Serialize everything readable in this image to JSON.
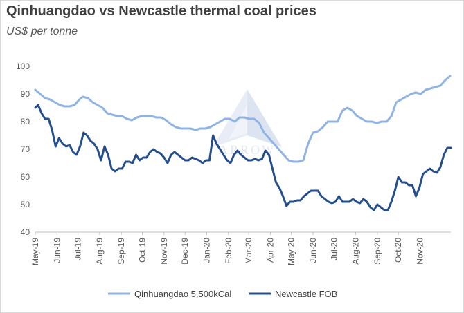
{
  "chart_data": {
    "type": "line",
    "title": "Qinhuangdao vs Newcastle thermal coal prices",
    "subtitle": "US$ per tonne",
    "ylim": [
      40,
      100
    ],
    "yticks": [
      "40",
      "50",
      "60",
      "70",
      "80",
      "90",
      "100"
    ],
    "xlim": [
      "2019-05-01",
      "2020-12-15"
    ],
    "categories": [
      "May-19",
      "Jun-19",
      "Jul-19",
      "Aug-19",
      "Sep-19",
      "Oct-19",
      "Nov-19",
      "Dec-19",
      "Jan-20",
      "Feb-20",
      "Mar-20",
      "Apr-20",
      "May-20",
      "Jun-20",
      "Jul-20",
      "Aug-20",
      "Sep-20",
      "Oct-20",
      "Nov-20"
    ],
    "legend_position": "bottom",
    "grid": false,
    "watermark": "ARROW",
    "series": [
      {
        "name": "Qinhuangdao 5,500kCal",
        "color": "#8fb4e3",
        "points": [
          [
            "2019-05-01",
            91.5
          ],
          [
            "2019-05-08",
            90
          ],
          [
            "2019-05-15",
            88.5
          ],
          [
            "2019-05-22",
            88
          ],
          [
            "2019-05-29",
            87
          ],
          [
            "2019-06-05",
            86
          ],
          [
            "2019-06-12",
            85.5
          ],
          [
            "2019-06-19",
            85.5
          ],
          [
            "2019-06-26",
            86
          ],
          [
            "2019-07-03",
            88
          ],
          [
            "2019-07-08",
            89
          ],
          [
            "2019-07-15",
            88.5
          ],
          [
            "2019-07-22",
            87
          ],
          [
            "2019-07-29",
            86
          ],
          [
            "2019-08-05",
            85
          ],
          [
            "2019-08-12",
            83
          ],
          [
            "2019-08-19",
            82.5
          ],
          [
            "2019-08-26",
            82
          ],
          [
            "2019-09-02",
            82
          ],
          [
            "2019-09-09",
            81
          ],
          [
            "2019-09-16",
            80.5
          ],
          [
            "2019-09-23",
            81.5
          ],
          [
            "2019-09-30",
            82
          ],
          [
            "2019-10-07",
            82
          ],
          [
            "2019-10-14",
            82
          ],
          [
            "2019-10-21",
            81.5
          ],
          [
            "2019-10-28",
            81.5
          ],
          [
            "2019-11-04",
            80.5
          ],
          [
            "2019-11-11",
            79
          ],
          [
            "2019-11-18",
            78
          ],
          [
            "2019-11-25",
            77.5
          ],
          [
            "2019-12-02",
            77.5
          ],
          [
            "2019-12-09",
            77.5
          ],
          [
            "2019-12-16",
            77
          ],
          [
            "2019-12-23",
            77.5
          ],
          [
            "2019-12-30",
            77.5
          ],
          [
            "2020-01-06",
            78
          ],
          [
            "2020-01-13",
            79
          ],
          [
            "2020-01-20",
            80
          ],
          [
            "2020-01-27",
            81
          ],
          [
            "2020-02-03",
            81
          ],
          [
            "2020-02-10",
            80
          ],
          [
            "2020-02-17",
            81.5
          ],
          [
            "2020-02-24",
            81.5
          ],
          [
            "2020-03-02",
            81
          ],
          [
            "2020-03-09",
            81
          ],
          [
            "2020-03-16",
            79.5
          ],
          [
            "2020-03-23",
            76
          ],
          [
            "2020-03-30",
            74
          ],
          [
            "2020-04-06",
            72
          ],
          [
            "2020-04-13",
            70
          ],
          [
            "2020-04-20",
            68
          ],
          [
            "2020-04-27",
            66
          ],
          [
            "2020-05-04",
            65.5
          ],
          [
            "2020-05-11",
            65.5
          ],
          [
            "2020-05-18",
            66
          ],
          [
            "2020-05-25",
            72
          ],
          [
            "2020-06-01",
            76
          ],
          [
            "2020-06-08",
            76.5
          ],
          [
            "2020-06-15",
            78
          ],
          [
            "2020-06-22",
            80
          ],
          [
            "2020-06-29",
            80
          ],
          [
            "2020-07-06",
            80
          ],
          [
            "2020-07-13",
            84
          ],
          [
            "2020-07-20",
            85
          ],
          [
            "2020-07-27",
            84
          ],
          [
            "2020-08-03",
            82
          ],
          [
            "2020-08-10",
            81
          ],
          [
            "2020-08-17",
            80
          ],
          [
            "2020-08-24",
            80
          ],
          [
            "2020-08-31",
            79.5
          ],
          [
            "2020-09-07",
            80
          ],
          [
            "2020-09-14",
            80
          ],
          [
            "2020-09-21",
            82
          ],
          [
            "2020-09-28",
            87
          ],
          [
            "2020-10-05",
            88
          ],
          [
            "2020-10-12",
            89
          ],
          [
            "2020-10-19",
            90
          ],
          [
            "2020-10-26",
            90.5
          ],
          [
            "2020-11-02",
            90
          ],
          [
            "2020-11-09",
            91.5
          ],
          [
            "2020-11-16",
            92
          ],
          [
            "2020-11-23",
            92.5
          ],
          [
            "2020-11-30",
            93
          ],
          [
            "2020-12-07",
            95
          ],
          [
            "2020-12-14",
            96.5
          ]
        ]
      },
      {
        "name": "Newcastle FOB",
        "color": "#244f8c",
        "points": [
          [
            "2019-05-01",
            85
          ],
          [
            "2019-05-05",
            86
          ],
          [
            "2019-05-10",
            83
          ],
          [
            "2019-05-15",
            81
          ],
          [
            "2019-05-20",
            81
          ],
          [
            "2019-05-25",
            77
          ],
          [
            "2019-05-30",
            71
          ],
          [
            "2019-06-04",
            74
          ],
          [
            "2019-06-09",
            72
          ],
          [
            "2019-06-14",
            71
          ],
          [
            "2019-06-19",
            71.5
          ],
          [
            "2019-06-24",
            69
          ],
          [
            "2019-06-29",
            68
          ],
          [
            "2019-07-04",
            71
          ],
          [
            "2019-07-09",
            76
          ],
          [
            "2019-07-14",
            75
          ],
          [
            "2019-07-19",
            73
          ],
          [
            "2019-07-24",
            72
          ],
          [
            "2019-07-29",
            70
          ],
          [
            "2019-08-03",
            66
          ],
          [
            "2019-08-08",
            71
          ],
          [
            "2019-08-13",
            68
          ],
          [
            "2019-08-18",
            63
          ],
          [
            "2019-08-23",
            62
          ],
          [
            "2019-08-28",
            63
          ],
          [
            "2019-09-02",
            63
          ],
          [
            "2019-09-07",
            65.5
          ],
          [
            "2019-09-12",
            65.5
          ],
          [
            "2019-09-17",
            65
          ],
          [
            "2019-09-22",
            68
          ],
          [
            "2019-09-27",
            66
          ],
          [
            "2019-10-02",
            67
          ],
          [
            "2019-10-07",
            67
          ],
          [
            "2019-10-12",
            69
          ],
          [
            "2019-10-17",
            70
          ],
          [
            "2019-10-22",
            69
          ],
          [
            "2019-10-27",
            68.5
          ],
          [
            "2019-11-01",
            67
          ],
          [
            "2019-11-06",
            65
          ],
          [
            "2019-11-11",
            68
          ],
          [
            "2019-11-16",
            69
          ],
          [
            "2019-11-21",
            68
          ],
          [
            "2019-11-26",
            67
          ],
          [
            "2019-12-01",
            66
          ],
          [
            "2019-12-06",
            66
          ],
          [
            "2019-12-11",
            67
          ],
          [
            "2019-12-16",
            66.5
          ],
          [
            "2019-12-21",
            66
          ],
          [
            "2019-12-26",
            65
          ],
          [
            "2019-12-31",
            66
          ],
          [
            "2020-01-05",
            66
          ],
          [
            "2020-01-10",
            75
          ],
          [
            "2020-01-15",
            72
          ],
          [
            "2020-01-20",
            70
          ],
          [
            "2020-01-25",
            68
          ],
          [
            "2020-01-30",
            66
          ],
          [
            "2020-02-04",
            65
          ],
          [
            "2020-02-09",
            68
          ],
          [
            "2020-02-14",
            69.5
          ],
          [
            "2020-02-19",
            68
          ],
          [
            "2020-02-24",
            67
          ],
          [
            "2020-02-29",
            66
          ],
          [
            "2020-03-05",
            66
          ],
          [
            "2020-03-10",
            66.5
          ],
          [
            "2020-03-15",
            66
          ],
          [
            "2020-03-20",
            66.5
          ],
          [
            "2020-03-25",
            69.5
          ],
          [
            "2020-03-30",
            68
          ],
          [
            "2020-04-04",
            63
          ],
          [
            "2020-04-09",
            58
          ],
          [
            "2020-04-14",
            56
          ],
          [
            "2020-04-19",
            53
          ],
          [
            "2020-04-24",
            49.5
          ],
          [
            "2020-04-29",
            51
          ],
          [
            "2020-05-04",
            51
          ],
          [
            "2020-05-09",
            51.5
          ],
          [
            "2020-05-14",
            51.5
          ],
          [
            "2020-05-19",
            53
          ],
          [
            "2020-05-24",
            54
          ],
          [
            "2020-05-29",
            55
          ],
          [
            "2020-06-03",
            55
          ],
          [
            "2020-06-08",
            55
          ],
          [
            "2020-06-13",
            53
          ],
          [
            "2020-06-18",
            52
          ],
          [
            "2020-06-23",
            51
          ],
          [
            "2020-06-28",
            50.5
          ],
          [
            "2020-07-03",
            51
          ],
          [
            "2020-07-08",
            53
          ],
          [
            "2020-07-13",
            51
          ],
          [
            "2020-07-18",
            51
          ],
          [
            "2020-07-23",
            51
          ],
          [
            "2020-07-28",
            52
          ],
          [
            "2020-08-02",
            51
          ],
          [
            "2020-08-07",
            50.5
          ],
          [
            "2020-08-12",
            52
          ],
          [
            "2020-08-17",
            51
          ],
          [
            "2020-08-22",
            49
          ],
          [
            "2020-08-27",
            48
          ],
          [
            "2020-09-01",
            50
          ],
          [
            "2020-09-06",
            49
          ],
          [
            "2020-09-11",
            48
          ],
          [
            "2020-09-16",
            48
          ],
          [
            "2020-09-21",
            51
          ],
          [
            "2020-09-26",
            55
          ],
          [
            "2020-10-01",
            60
          ],
          [
            "2020-10-06",
            58
          ],
          [
            "2020-10-11",
            58
          ],
          [
            "2020-10-16",
            57
          ],
          [
            "2020-10-21",
            57
          ],
          [
            "2020-10-26",
            53
          ],
          [
            "2020-10-31",
            56
          ],
          [
            "2020-11-05",
            61
          ],
          [
            "2020-11-10",
            62
          ],
          [
            "2020-11-15",
            63
          ],
          [
            "2020-11-20",
            62
          ],
          [
            "2020-11-25",
            61.5
          ],
          [
            "2020-11-30",
            63.5
          ],
          [
            "2020-12-05",
            68
          ],
          [
            "2020-12-10",
            70.5
          ],
          [
            "2020-12-15",
            70.5
          ]
        ]
      }
    ]
  }
}
